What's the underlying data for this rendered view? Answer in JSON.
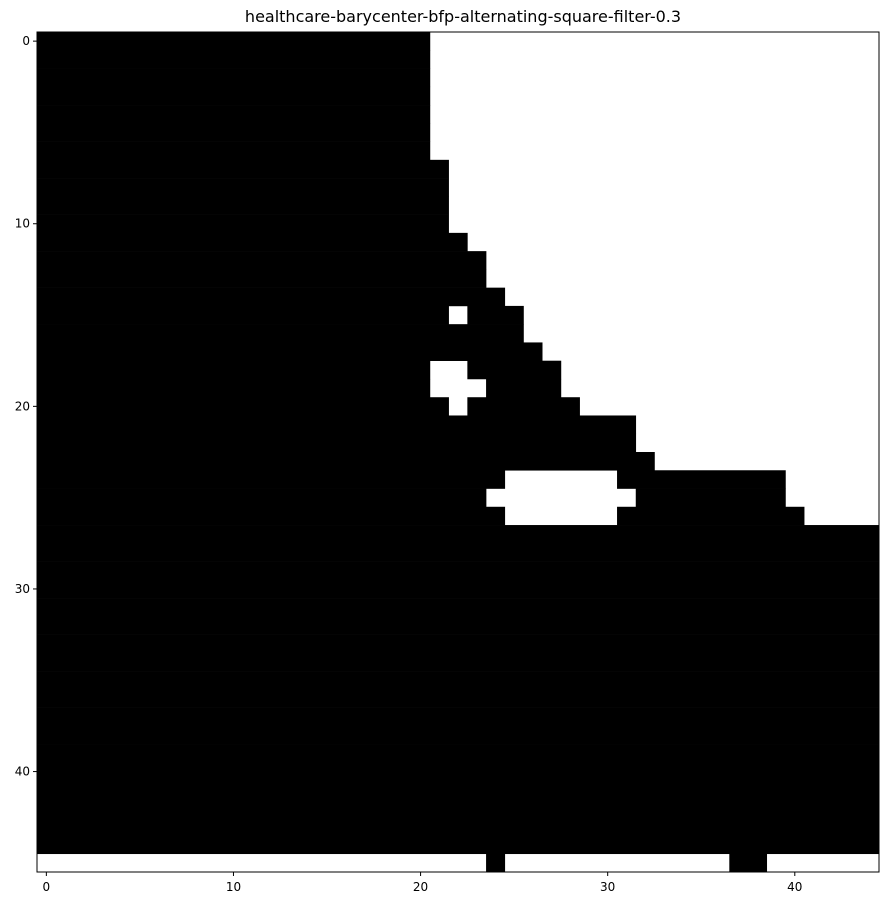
{
  "chart_data": {
    "type": "heatmap",
    "title": "healthcare-barycenter-bfp-alternating-square-filter-0.3",
    "xlabel": "",
    "ylabel": "",
    "rows": 46,
    "cols": 45,
    "xlim": [
      -0.5,
      44.5
    ],
    "ylim": [
      45.5,
      -0.5
    ],
    "xticks": [
      0,
      10,
      20,
      30,
      40
    ],
    "yticks": [
      0,
      10,
      20,
      30,
      40
    ],
    "colormap": {
      "1": "#000000",
      "0": "#ffffff"
    },
    "grid": false,
    "black_rows": [
      {
        "row": 0,
        "spans": [
          [
            0,
            20
          ]
        ]
      },
      {
        "row": 1,
        "spans": [
          [
            0,
            20
          ]
        ]
      },
      {
        "row": 2,
        "spans": [
          [
            0,
            20
          ]
        ]
      },
      {
        "row": 3,
        "spans": [
          [
            0,
            20
          ]
        ]
      },
      {
        "row": 4,
        "spans": [
          [
            0,
            20
          ]
        ]
      },
      {
        "row": 5,
        "spans": [
          [
            0,
            20
          ]
        ]
      },
      {
        "row": 6,
        "spans": [
          [
            0,
            20
          ]
        ]
      },
      {
        "row": 7,
        "spans": [
          [
            0,
            21
          ]
        ]
      },
      {
        "row": 8,
        "spans": [
          [
            0,
            21
          ]
        ]
      },
      {
        "row": 9,
        "spans": [
          [
            0,
            21
          ]
        ]
      },
      {
        "row": 10,
        "spans": [
          [
            0,
            21
          ]
        ]
      },
      {
        "row": 11,
        "spans": [
          [
            0,
            22
          ]
        ]
      },
      {
        "row": 12,
        "spans": [
          [
            0,
            23
          ]
        ]
      },
      {
        "row": 13,
        "spans": [
          [
            0,
            23
          ]
        ]
      },
      {
        "row": 14,
        "spans": [
          [
            0,
            24
          ]
        ]
      },
      {
        "row": 15,
        "spans": [
          [
            0,
            21
          ],
          [
            23,
            25
          ]
        ]
      },
      {
        "row": 16,
        "spans": [
          [
            0,
            25
          ]
        ]
      },
      {
        "row": 17,
        "spans": [
          [
            0,
            26
          ]
        ]
      },
      {
        "row": 18,
        "spans": [
          [
            0,
            20
          ],
          [
            23,
            27
          ]
        ]
      },
      {
        "row": 19,
        "spans": [
          [
            0,
            20
          ],
          [
            24,
            27
          ]
        ]
      },
      {
        "row": 20,
        "spans": [
          [
            0,
            21
          ],
          [
            23,
            28
          ]
        ]
      },
      {
        "row": 21,
        "spans": [
          [
            0,
            31
          ]
        ]
      },
      {
        "row": 22,
        "spans": [
          [
            0,
            31
          ]
        ]
      },
      {
        "row": 23,
        "spans": [
          [
            0,
            32
          ]
        ]
      },
      {
        "row": 24,
        "spans": [
          [
            0,
            24
          ],
          [
            31,
            39
          ]
        ]
      },
      {
        "row": 25,
        "spans": [
          [
            0,
            23
          ],
          [
            32,
            39
          ]
        ]
      },
      {
        "row": 26,
        "spans": [
          [
            0,
            24
          ],
          [
            31,
            40
          ]
        ]
      },
      {
        "row": 27,
        "spans": [
          [
            0,
            44
          ]
        ]
      },
      {
        "row": 28,
        "spans": [
          [
            0,
            44
          ]
        ]
      },
      {
        "row": 29,
        "spans": [
          [
            0,
            44
          ]
        ]
      },
      {
        "row": 30,
        "spans": [
          [
            0,
            44
          ]
        ]
      },
      {
        "row": 31,
        "spans": [
          [
            0,
            44
          ]
        ]
      },
      {
        "row": 32,
        "spans": [
          [
            0,
            44
          ]
        ]
      },
      {
        "row": 33,
        "spans": [
          [
            0,
            44
          ]
        ]
      },
      {
        "row": 34,
        "spans": [
          [
            0,
            44
          ]
        ]
      },
      {
        "row": 35,
        "spans": [
          [
            0,
            44
          ]
        ]
      },
      {
        "row": 36,
        "spans": [
          [
            0,
            44
          ]
        ]
      },
      {
        "row": 37,
        "spans": [
          [
            0,
            44
          ]
        ]
      },
      {
        "row": 38,
        "spans": [
          [
            0,
            44
          ]
        ]
      },
      {
        "row": 39,
        "spans": [
          [
            0,
            44
          ]
        ]
      },
      {
        "row": 40,
        "spans": [
          [
            0,
            44
          ]
        ]
      },
      {
        "row": 41,
        "spans": [
          [
            0,
            44
          ]
        ]
      },
      {
        "row": 42,
        "spans": [
          [
            0,
            44
          ]
        ]
      },
      {
        "row": 43,
        "spans": [
          [
            0,
            44
          ]
        ]
      },
      {
        "row": 44,
        "spans": [
          [
            0,
            44
          ]
        ]
      },
      {
        "row": 45,
        "spans": [
          [
            24,
            24
          ],
          [
            37,
            38
          ]
        ]
      }
    ]
  }
}
